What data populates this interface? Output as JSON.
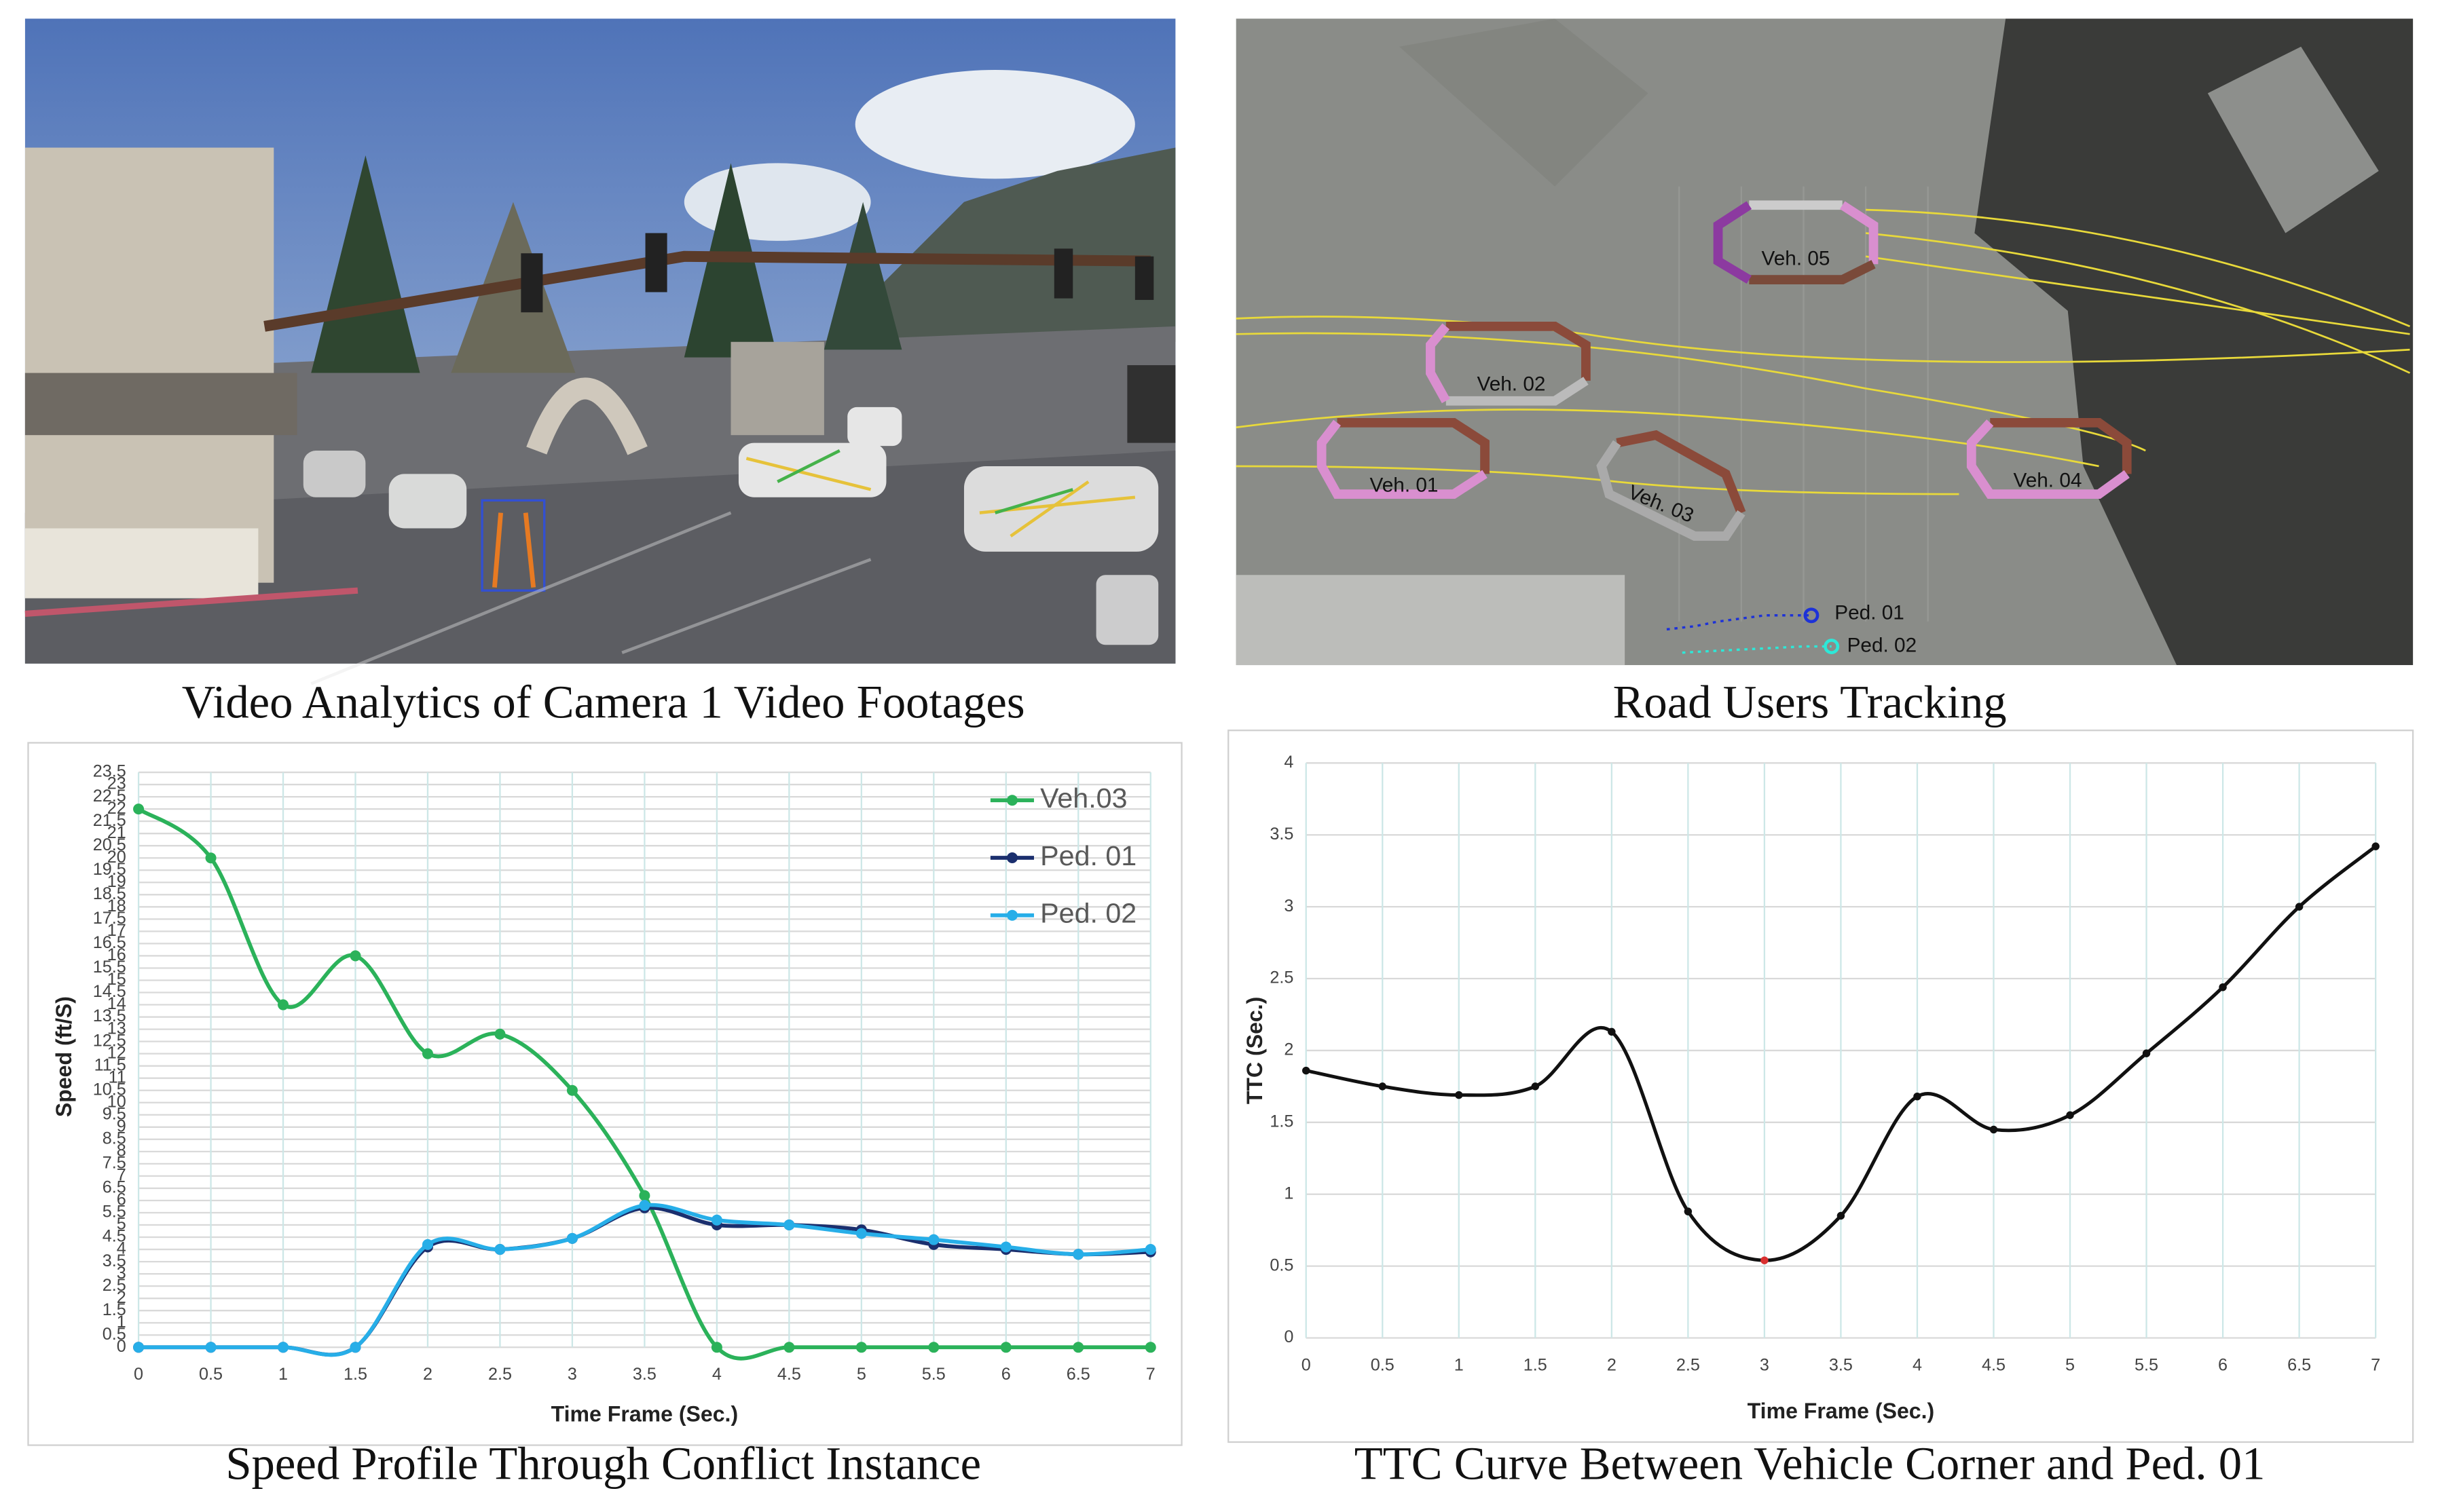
{
  "photo_panels": [
    {
      "caption": "Video Analytics of Camera 1 Video Footages"
    },
    {
      "caption": "Road Users Tracking",
      "labels": [
        "Veh. 05",
        "Veh. 02",
        "Veh. 01",
        "Veh. 03",
        "Veh. 04",
        "Ped. 01",
        "Ped. 02"
      ]
    }
  ],
  "chart_data": [
    {
      "type": "line",
      "caption": "Speed Profile Through Conflict Instance",
      "x_label": "Time Frame (Sec.)",
      "y_label": "Speed (ft/S)",
      "x": [
        0,
        0.5,
        1,
        1.5,
        2,
        2.5,
        3,
        3.5,
        4,
        4.5,
        5,
        5.5,
        6,
        6.5,
        7
      ],
      "xlim": [
        0,
        7
      ],
      "xticks": [
        0,
        0.5,
        1,
        1.5,
        2,
        2.5,
        3,
        3.5,
        4,
        4.5,
        5,
        5.5,
        6,
        6.5,
        7
      ],
      "ylim": [
        0,
        23.5
      ],
      "yticks": [
        0,
        0.5,
        1,
        1.5,
        2,
        2.5,
        3,
        3.5,
        4,
        4.5,
        5,
        5.5,
        6,
        6.5,
        7,
        7.5,
        8,
        8.5,
        9,
        9.5,
        10,
        10.5,
        11,
        11.5,
        12,
        12.5,
        13,
        13.5,
        14,
        14.5,
        15,
        15.5,
        16,
        16.5,
        17,
        17.5,
        18,
        18.5,
        19,
        19.5,
        20,
        20.5,
        21,
        21.5,
        22,
        22.5,
        23,
        23.5
      ],
      "grid": true,
      "legend": "upper right",
      "series": [
        {
          "name": "Veh.03",
          "color": "#2bb25a",
          "values": [
            22,
            20,
            14,
            16,
            12,
            12.8,
            10.5,
            6.2,
            0,
            0,
            0,
            0,
            0,
            0,
            0
          ]
        },
        {
          "name": "Ped. 01",
          "color": "#1b2f6e",
          "values": [
            0,
            0,
            0,
            0,
            4.1,
            4.0,
            4.45,
            5.7,
            5.0,
            5.0,
            4.8,
            4.2,
            4.0,
            3.8,
            3.9
          ]
        },
        {
          "name": "Ped. 02",
          "color": "#27aee8",
          "values": [
            0,
            0,
            0,
            0,
            4.2,
            4.0,
            4.45,
            5.8,
            5.2,
            5.0,
            4.65,
            4.4,
            4.1,
            3.8,
            4.0
          ]
        }
      ]
    },
    {
      "type": "line",
      "caption": "TTC Curve Between Vehicle Corner and Ped. 01",
      "x_label": "Time Frame (Sec.)",
      "y_label": "TTC (Sec.)",
      "x": [
        0,
        0.5,
        1,
        1.5,
        2,
        2.5,
        3,
        3.5,
        4,
        4.5,
        5,
        5.5,
        6,
        6.5,
        7
      ],
      "xlim": [
        0,
        7
      ],
      "xticks": [
        0,
        0.5,
        1,
        1.5,
        2,
        2.5,
        3,
        3.5,
        4,
        4.5,
        5,
        5.5,
        6,
        6.5,
        7
      ],
      "ylim": [
        0,
        4
      ],
      "yticks": [
        0,
        0.5,
        1,
        1.5,
        2,
        2.5,
        3,
        3.5,
        4
      ],
      "grid": true,
      "series": [
        {
          "color": "#111111",
          "values": [
            1.86,
            1.75,
            1.69,
            1.75,
            2.13,
            0.88,
            0.54,
            0.85,
            1.68,
            1.45,
            1.55,
            1.98,
            2.44,
            3.0,
            3.42
          ]
        }
      ],
      "highlight": {
        "index": 6,
        "color": "#d93030"
      }
    }
  ]
}
